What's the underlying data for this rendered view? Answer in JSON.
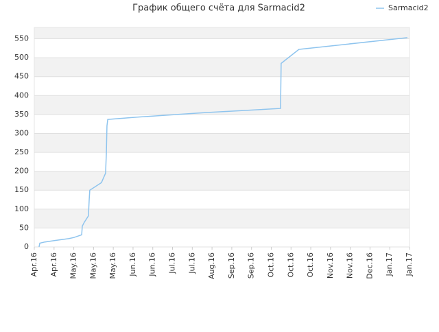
{
  "chart_data": {
    "type": "line",
    "title": "График общего счёта для Sarmacid2",
    "x": [
      0.24,
      0.28,
      0.52,
      1.04,
      1.74,
      2.01,
      2.4,
      2.43,
      2.53,
      2.74,
      2.78,
      2.81,
      3.4,
      3.61,
      3.65,
      3.68,
      3.72,
      5.21,
      8.68,
      12.47,
      12.5,
      13.4,
      18.89
    ],
    "series": [
      {
        "name": "Sarmacid2",
        "color": "#8ec4ee",
        "values": [
          0,
          10,
          13,
          17,
          22,
          25,
          32,
          55,
          65,
          82,
          125,
          150,
          170,
          195,
          250,
          320,
          337,
          343,
          355,
          366,
          485,
          522,
          553
        ]
      }
    ],
    "xlim": [
      0,
      19
    ],
    "xticks": [
      {
        "value": 0,
        "label": "Apr.16"
      },
      {
        "value": 1,
        "label": "Apr.16"
      },
      {
        "value": 2,
        "label": "May.16"
      },
      {
        "value": 3,
        "label": "May.16"
      },
      {
        "value": 4,
        "label": "May.16"
      },
      {
        "value": 5,
        "label": "Jun.16"
      },
      {
        "value": 6,
        "label": "Jun.16"
      },
      {
        "value": 7,
        "label": "Jul.16"
      },
      {
        "value": 8,
        "label": "Jul.16"
      },
      {
        "value": 9,
        "label": "Aug.16"
      },
      {
        "value": 10,
        "label": "Sep.16"
      },
      {
        "value": 11,
        "label": "Sep.16"
      },
      {
        "value": 12,
        "label": "Oct.16"
      },
      {
        "value": 13,
        "label": "Oct.16"
      },
      {
        "value": 14,
        "label": "Oct.16"
      },
      {
        "value": 15,
        "label": "Nov.16"
      },
      {
        "value": 16,
        "label": "Nov.16"
      },
      {
        "value": 17,
        "label": "Dec.16"
      },
      {
        "value": 18,
        "label": "Jan.17"
      },
      {
        "value": 19,
        "label": "Jan.17"
      }
    ],
    "ylim": [
      0,
      580
    ],
    "yticks": [
      0,
      50,
      100,
      150,
      200,
      250,
      300,
      350,
      400,
      450,
      500,
      550
    ],
    "grid": true,
    "legend": "top-right"
  }
}
